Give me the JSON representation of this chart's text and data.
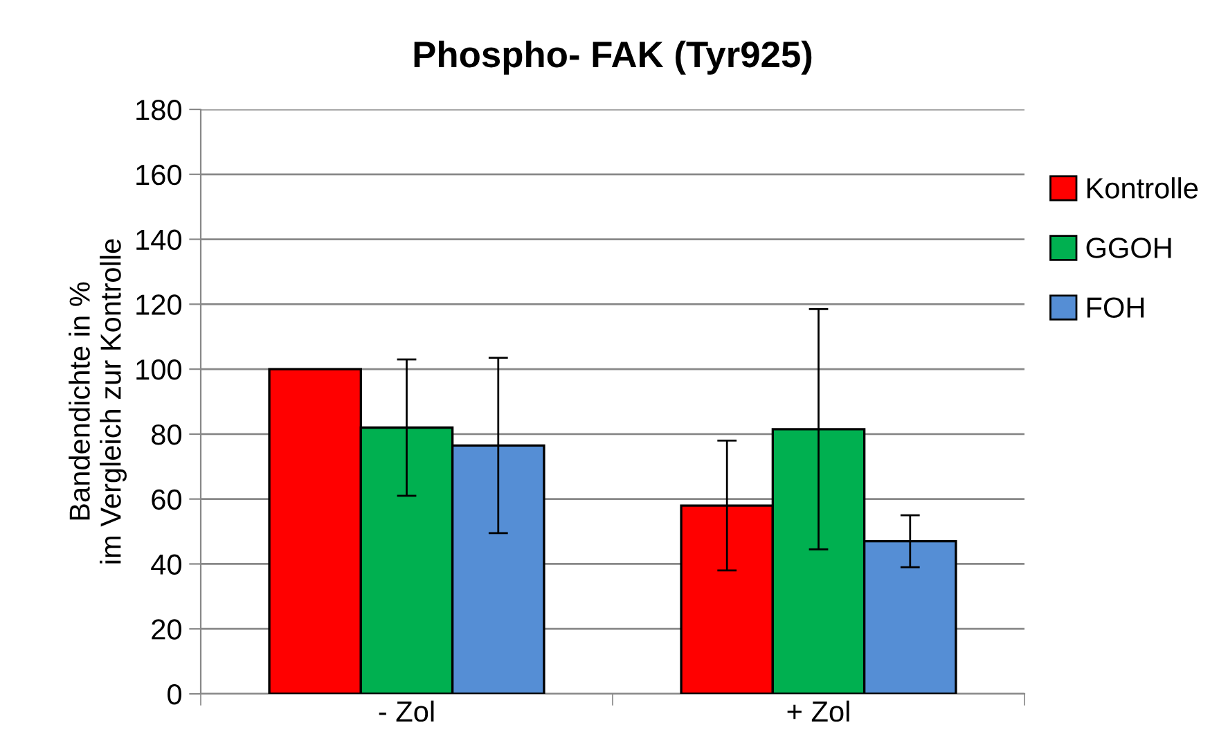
{
  "chart_data": {
    "type": "bar",
    "title": "Phospho- FAK (Tyr925)",
    "ylabel": "Bandendichte in %\nim Vergleich zur Kontrolle",
    "categories": [
      "- Zol",
      "+ Zol"
    ],
    "series": [
      {
        "name": "Kontrolle",
        "color": "#ff0000",
        "values": [
          100,
          58
        ],
        "errors": [
          null,
          20
        ]
      },
      {
        "name": "GGOH",
        "color": "#00b050",
        "values": [
          82,
          81.5
        ],
        "errors": [
          21,
          37
        ]
      },
      {
        "name": "FOH",
        "color": "#558ed5",
        "values": [
          76.5,
          47
        ],
        "errors": [
          27,
          8
        ]
      }
    ],
    "ylim": [
      0,
      180
    ],
    "yticks": [
      0,
      20,
      40,
      60,
      80,
      100,
      120,
      140,
      160,
      180
    ],
    "grid": "y",
    "legend": "right"
  }
}
